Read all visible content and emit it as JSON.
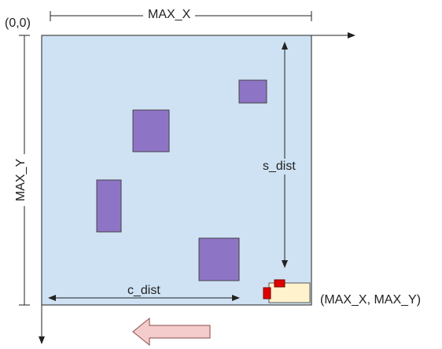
{
  "labels": {
    "origin": "(0,0)",
    "max_x": "MAX_X",
    "max_y": "MAX_Y",
    "s_dist": "s_dist",
    "c_dist": "c_dist",
    "corner": "(MAX_X, MAX_Y)"
  },
  "colors": {
    "field_fill": "#cfe2f3",
    "field_border": "#222222",
    "obstacle": "#8e74c5",
    "robot_body": "#fff2cc",
    "robot_marker": "#e00000",
    "move_arrow_fill": "#f4cccc",
    "move_arrow_stroke": "#8a4a4a"
  },
  "icons": {
    "robot": "robot-icon",
    "movement": "left-arrow-icon"
  }
}
